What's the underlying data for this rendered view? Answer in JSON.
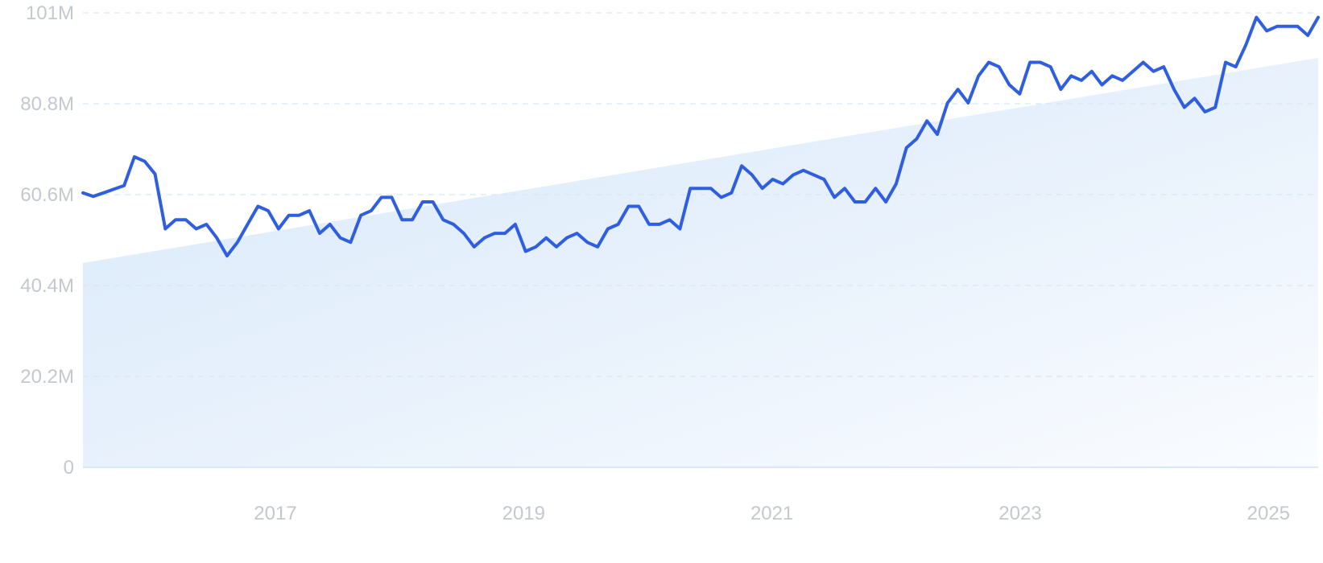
{
  "chart_data": {
    "type": "line",
    "title": "",
    "xlabel": "",
    "ylabel": "",
    "x_tick_labels": [
      "2017",
      "2019",
      "2021",
      "2023",
      "2025"
    ],
    "y_tick_labels": [
      "0",
      "20.2M",
      "40.4M",
      "60.6M",
      "80.8M",
      "101M"
    ],
    "y_ticks": [
      0,
      20200000,
      40400000,
      60600000,
      80800000,
      101000000
    ],
    "ylim": [
      0,
      101000000
    ],
    "xlim": [
      2015.45,
      2025.4
    ],
    "grid": "horizontal dashed",
    "legend": "none",
    "colors": {
      "line": "#2f5fe0",
      "trend_fill": "#dbeafb",
      "grid": "#d6e6f5",
      "tick_text": "#c4c8cf"
    },
    "trend": {
      "start": 45400000,
      "end": 91000000
    },
    "series": [
      {
        "values": [
          61.0,
          60.2,
          61.0,
          61.8,
          62.6,
          69.0,
          68.0,
          65.2,
          53.0,
          55.0,
          55.0,
          53.0,
          54.0,
          51.0,
          47.0,
          50.0,
          54.0,
          58.0,
          57.0,
          53.0,
          56.0,
          56.0,
          57.0,
          52.0,
          54.0,
          51.0,
          50.0,
          56.0,
          57.0,
          60.0,
          60.0,
          55.0,
          55.0,
          59.0,
          59.0,
          55.0,
          54.0,
          52.0,
          49.0,
          51.0,
          52.0,
          52.0,
          54.0,
          48.0,
          49.0,
          51.0,
          49.0,
          51.0,
          52.0,
          50.0,
          49.0,
          53.0,
          54.0,
          58.0,
          58.0,
          54.0,
          54.0,
          55.0,
          53.0,
          62.0,
          62.0,
          62.0,
          60.0,
          61.0,
          67.0,
          65.0,
          62.0,
          64.0,
          63.0,
          65.0,
          66.0,
          65.0,
          64.0,
          60.0,
          62.0,
          59.0,
          59.0,
          62.0,
          59.0,
          63.0,
          71.0,
          73.0,
          77.0,
          74.0,
          81.0,
          84.0,
          81.0,
          87.0,
          90.0,
          89.0,
          85.0,
          83.0,
          90.0,
          90.0,
          89.0,
          84.0,
          87.0,
          86.0,
          88.0,
          85.0,
          87.0,
          86.0,
          88.0,
          90.0,
          88.0,
          89.0,
          84.0,
          80.0,
          82.0,
          79.0,
          80.0,
          90.0,
          89.0,
          94.0,
          100.0,
          97.0,
          98.0,
          98.0,
          98.0,
          96.0,
          100.0
        ]
      }
    ]
  }
}
